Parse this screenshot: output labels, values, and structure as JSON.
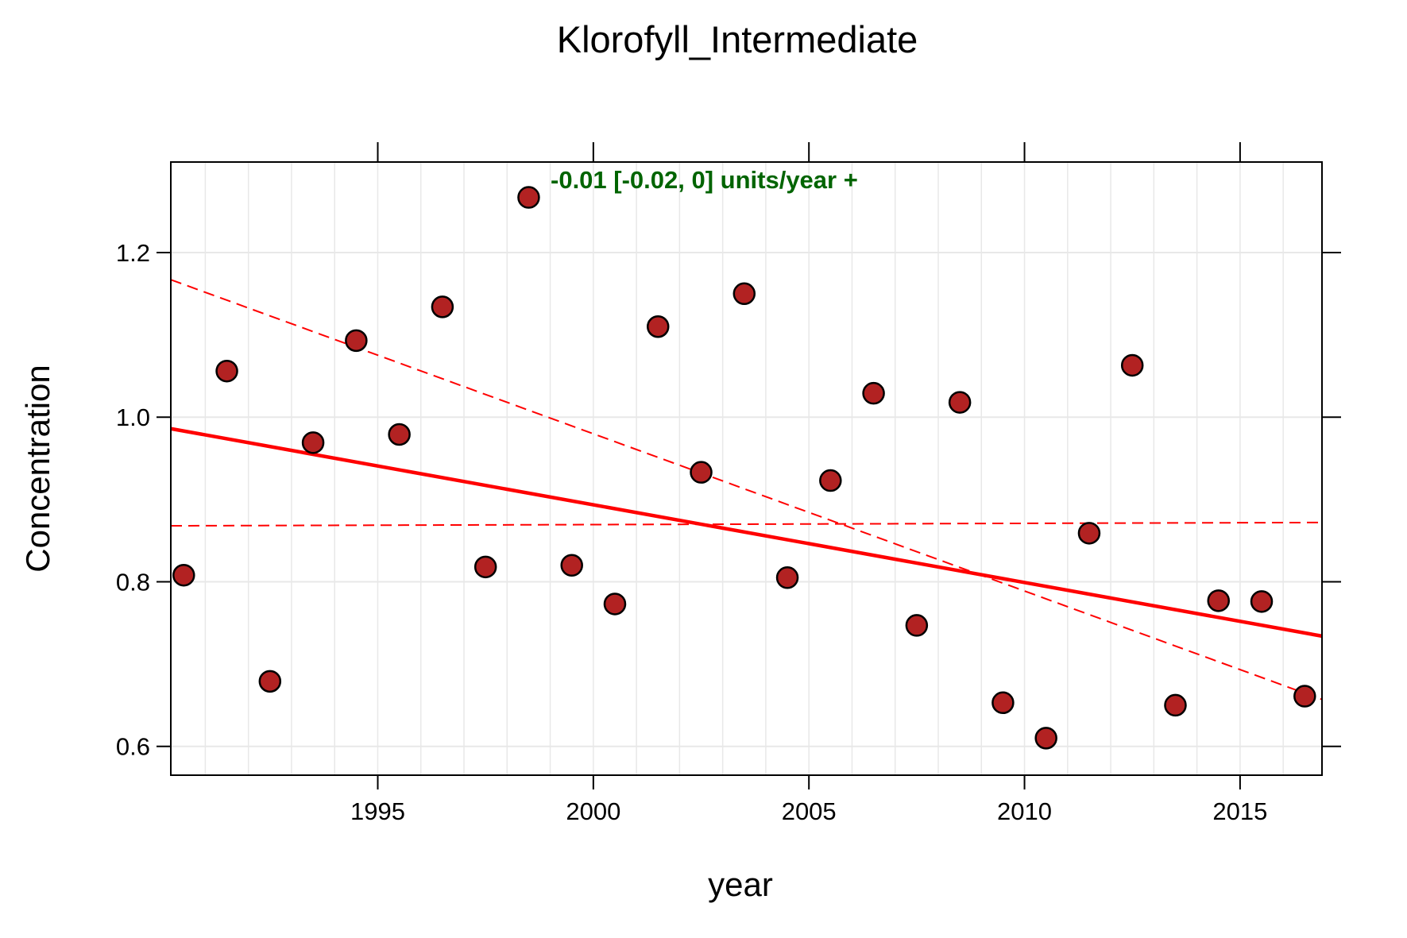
{
  "chart_data": {
    "type": "scatter",
    "title": "Klorofyll_Intermediate",
    "xlabel": "year",
    "ylabel": "Concentration",
    "xlim": [
      1990.2,
      2016.9
    ],
    "ylim": [
      0.565,
      1.31
    ],
    "x_ticks": [
      1995,
      2000,
      2005,
      2010,
      2015
    ],
    "x_tick_labels": [
      "1995",
      "2000",
      "2005",
      "2010",
      "2015"
    ],
    "y_ticks": [
      0.6,
      0.8,
      1.0,
      1.2
    ],
    "y_tick_labels": [
      "0.6",
      "0.8",
      "1.0",
      "1.2"
    ],
    "grid": true,
    "annotation": "-0.01 [-0.02, 0] units/year +",
    "colors": {
      "points": "#b22222",
      "trend": "#ff0000",
      "annotation": "#006400",
      "grid": "#e8e8e8"
    },
    "points": [
      {
        "x": 1990.5,
        "y": 0.808
      },
      {
        "x": 1991.5,
        "y": 1.056
      },
      {
        "x": 1992.5,
        "y": 0.679
      },
      {
        "x": 1993.5,
        "y": 0.969
      },
      {
        "x": 1994.5,
        "y": 1.093
      },
      {
        "x": 1995.5,
        "y": 0.979
      },
      {
        "x": 1996.5,
        "y": 1.134
      },
      {
        "x": 1997.5,
        "y": 0.818
      },
      {
        "x": 1998.5,
        "y": 1.267
      },
      {
        "x": 1999.5,
        "y": 0.82
      },
      {
        "x": 2000.5,
        "y": 0.773
      },
      {
        "x": 2001.5,
        "y": 1.11
      },
      {
        "x": 2002.5,
        "y": 0.933
      },
      {
        "x": 2003.5,
        "y": 1.15
      },
      {
        "x": 2004.5,
        "y": 0.805
      },
      {
        "x": 2005.5,
        "y": 0.923
      },
      {
        "x": 2006.5,
        "y": 1.029
      },
      {
        "x": 2007.5,
        "y": 0.747
      },
      {
        "x": 2008.5,
        "y": 1.018
      },
      {
        "x": 2009.5,
        "y": 0.653
      },
      {
        "x": 2010.5,
        "y": 0.61
      },
      {
        "x": 2011.5,
        "y": 0.859
      },
      {
        "x": 2012.5,
        "y": 1.063
      },
      {
        "x": 2013.5,
        "y": 0.65
      },
      {
        "x": 2014.5,
        "y": 0.777
      },
      {
        "x": 2015.5,
        "y": 0.776
      },
      {
        "x": 2016.5,
        "y": 0.661
      }
    ],
    "trend_line": {
      "x": [
        1990.2,
        2016.9
      ],
      "y": [
        0.986,
        0.734
      ],
      "style": "solid"
    },
    "ci_lines": [
      {
        "x": [
          1990.2,
          2016.9
        ],
        "y": [
          1.167,
          0.657
        ],
        "style": "dashed"
      },
      {
        "x": [
          1990.2,
          2016.9
        ],
        "y": [
          0.868,
          0.872
        ],
        "style": "dashed"
      }
    ]
  }
}
